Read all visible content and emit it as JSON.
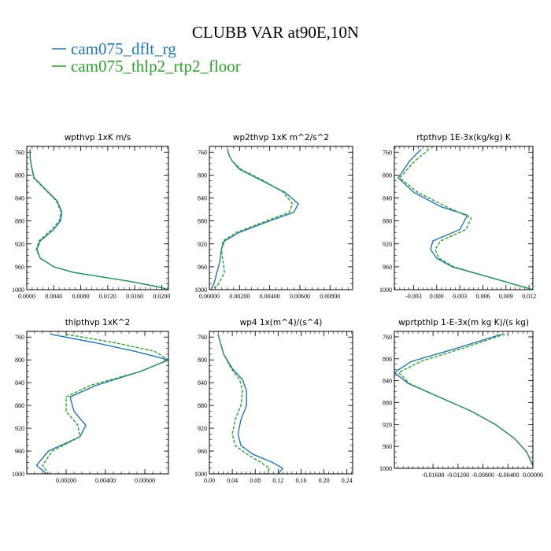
{
  "figure": {
    "title": "CLUBB VAR at90E,10N"
  },
  "legend": [
    {
      "label": "cam075_dflt_rg",
      "color": "#1f77b4",
      "style": "solid"
    },
    {
      "label": "cam075_thlp2_rtp2_floor",
      "color": "#2ca02c",
      "style": "dashed"
    }
  ],
  "chart_data": [
    {
      "type": "line",
      "title": "wpthvp   1xK m/s",
      "xlim": [
        0,
        0.021
      ],
      "ylim": [
        1000,
        750
      ],
      "xticks": [
        0,
        0.004,
        0.008,
        0.012,
        0.016,
        0.02
      ],
      "xtick_labels": [
        "0.0000",
        "0.0040",
        "0.0080",
        "0.0120",
        "0.0160",
        "0.0200"
      ],
      "yticks": [
        760,
        800,
        840,
        880,
        920,
        960,
        1000
      ],
      "ytick_labels": [
        "760",
        "800",
        "840",
        "880",
        "920",
        "960",
        "1000"
      ],
      "series": [
        {
          "name": "cam075_dflt_rg",
          "x": [
            0.0005,
            0.0005,
            0.0007,
            0.0011,
            0.0045,
            0.0052,
            0.005,
            0.004,
            0.002,
            0.0015,
            0.002,
            0.004,
            0.007,
            0.015,
            0.0195,
            0.021
          ],
          "y": [
            755,
            770,
            785,
            805,
            845,
            865,
            880,
            895,
            915,
            930,
            945,
            960,
            970,
            985,
            995,
            1000
          ]
        },
        {
          "name": "cam075_thlp2_rtp2_floor",
          "x": [
            0.0005,
            0.0005,
            0.0007,
            0.001,
            0.0044,
            0.0051,
            0.0048,
            0.0037,
            0.0018,
            0.0014,
            0.002,
            0.004,
            0.007,
            0.015,
            0.0195,
            0.021
          ],
          "y": [
            755,
            770,
            785,
            805,
            845,
            865,
            880,
            895,
            915,
            930,
            945,
            960,
            970,
            985,
            995,
            1000
          ]
        }
      ]
    },
    {
      "type": "line",
      "title": "wp2thvp   1xK m^2/s^2",
      "xlim": [
        0,
        0.0095
      ],
      "ylim": [
        1000,
        750
      ],
      "xticks": [
        0,
        0.002,
        0.004,
        0.006,
        0.008
      ],
      "xtick_labels": [
        "0.00000",
        "0.00200",
        "0.00400",
        "0.00600",
        "0.00800"
      ],
      "yticks": [
        760,
        800,
        840,
        880,
        920,
        960,
        1000
      ],
      "ytick_labels": [
        "760",
        "800",
        "840",
        "880",
        "920",
        "960",
        "1000"
      ],
      "series": [
        {
          "name": "cam075_dflt_rg",
          "x": [
            0.0012,
            0.0013,
            0.0015,
            0.002,
            0.0035,
            0.005,
            0.0059,
            0.0056,
            0.004,
            0.002,
            0.001,
            0.0008,
            0.0007,
            0.0005,
            0.0003,
            0.0001
          ],
          "y": [
            755,
            765,
            775,
            790,
            810,
            830,
            850,
            865,
            880,
            900,
            915,
            930,
            950,
            970,
            990,
            1000
          ]
        },
        {
          "name": "cam075_thlp2_rtp2_floor",
          "x": [
            0.0012,
            0.0013,
            0.0015,
            0.0021,
            0.0036,
            0.0049,
            0.0055,
            0.0053,
            0.0038,
            0.0018,
            0.0009,
            0.0008,
            0.0009,
            0.001,
            0.0006,
            0.0002
          ],
          "y": [
            755,
            765,
            775,
            790,
            810,
            830,
            850,
            865,
            880,
            900,
            915,
            930,
            950,
            970,
            990,
            1000
          ]
        }
      ]
    },
    {
      "type": "line",
      "title": "rtpthvp   1E-3x(kg/kg) K",
      "xlim": [
        -0.0055,
        0.0125
      ],
      "ylim": [
        1000,
        750
      ],
      "xticks": [
        -0.003,
        0.0,
        0.003,
        0.006,
        0.009,
        0.012
      ],
      "xtick_labels": [
        "-0.003",
        "0.000",
        "0.003",
        "0.006",
        "0.009",
        "0.012"
      ],
      "yticks": [
        760,
        800,
        840,
        880,
        920,
        960,
        1000
      ],
      "ytick_labels": [
        "760",
        "800",
        "840",
        "880",
        "920",
        "960",
        "1000"
      ],
      "series": [
        {
          "name": "cam075_dflt_rg",
          "x": [
            -0.002,
            -0.0035,
            -0.005,
            -0.003,
            0.0005,
            0.004,
            0.003,
            -0.0005,
            -0.0008,
            0.0,
            0.002,
            0.006,
            0.0125
          ],
          "y": [
            755,
            775,
            805,
            830,
            855,
            870,
            895,
            915,
            930,
            945,
            960,
            975,
            1000
          ]
        },
        {
          "name": "cam075_thlp2_rtp2_floor",
          "x": [
            -0.001,
            -0.0028,
            -0.0048,
            -0.0025,
            0.0012,
            0.0045,
            0.0038,
            0.0005,
            -0.0002,
            0.0003,
            0.0022,
            0.006,
            0.0125
          ],
          "y": [
            755,
            775,
            805,
            830,
            855,
            875,
            895,
            915,
            930,
            945,
            960,
            975,
            1000
          ]
        }
      ]
    },
    {
      "type": "line",
      "title": "thlpthvp   1xK^2",
      "xlim": [
        0,
        0.0072
      ],
      "ylim": [
        1000,
        750
      ],
      "xticks": [
        0.002,
        0.004,
        0.006
      ],
      "xtick_labels": [
        "0.00200",
        "0.00400",
        "0.00600"
      ],
      "yticks": [
        760,
        800,
        840,
        880,
        920,
        960,
        1000
      ],
      "ytick_labels": [
        "760",
        "800",
        "840",
        "880",
        "920",
        "960",
        "1000"
      ],
      "series": [
        {
          "name": "cam075_dflt_rg",
          "x": [
            0.0012,
            0.0035,
            0.0055,
            0.0072,
            0.0058,
            0.0035,
            0.0022,
            0.0024,
            0.003,
            0.0027,
            0.0011,
            0.0005,
            0.001
          ],
          "y": [
            755,
            770,
            785,
            800,
            820,
            845,
            865,
            890,
            915,
            935,
            960,
            985,
            1000
          ]
        },
        {
          "name": "cam075_thlp2_rtp2_floor",
          "x": [
            0.002,
            0.0045,
            0.0065,
            0.0072,
            0.0058,
            0.0032,
            0.002,
            0.002,
            0.0026,
            0.0027,
            0.0013,
            0.0008,
            0.0011
          ],
          "y": [
            755,
            770,
            785,
            800,
            820,
            845,
            865,
            890,
            915,
            935,
            960,
            985,
            1000
          ]
        }
      ]
    },
    {
      "type": "line",
      "title": "wp4   1x(m^4)/(s^4)",
      "xlim": [
        0,
        0.25
      ],
      "ylim": [
        1000,
        750
      ],
      "xticks": [
        0,
        0.04,
        0.08,
        0.12,
        0.16,
        0.2,
        0.24
      ],
      "xtick_labels": [
        "0.00",
        "0.04",
        "0.08",
        "0.12",
        "0.16",
        "0.20",
        "0.24"
      ],
      "yticks": [
        760,
        800,
        840,
        880,
        920,
        960,
        1000
      ],
      "ytick_labels": [
        "760",
        "800",
        "840",
        "880",
        "920",
        "960",
        "1000"
      ],
      "series": [
        {
          "name": "cam075_dflt_rg",
          "x": [
            0.015,
            0.025,
            0.04,
            0.058,
            0.065,
            0.065,
            0.055,
            0.05,
            0.055,
            0.075,
            0.11,
            0.128,
            0.12
          ],
          "y": [
            755,
            790,
            815,
            835,
            855,
            880,
            905,
            930,
            950,
            965,
            980,
            990,
            1000
          ]
        },
        {
          "name": "cam075_thlp2_rtp2_floor",
          "x": [
            0.015,
            0.025,
            0.038,
            0.053,
            0.058,
            0.055,
            0.045,
            0.04,
            0.045,
            0.065,
            0.09,
            0.105,
            0.1
          ],
          "y": [
            755,
            790,
            815,
            835,
            855,
            880,
            905,
            930,
            950,
            965,
            980,
            990,
            1000
          ]
        }
      ]
    },
    {
      "type": "line",
      "title": "wprtpthlp   1-E-3x(m kg K)/(s kg)",
      "xlim": [
        -0.0222,
        0.0
      ],
      "ylim": [
        1000,
        750
      ],
      "xticks": [
        -0.016,
        -0.012,
        -0.008,
        -0.004,
        0.0
      ],
      "xtick_labels": [
        "-0.01600",
        "-0.01200",
        "-0.00800",
        "-0.00400",
        "0.00000"
      ],
      "yticks": [
        760,
        800,
        840,
        880,
        920,
        960,
        1000
      ],
      "ytick_labels": [
        "760",
        "800",
        "840",
        "880",
        "920",
        "960",
        "1000"
      ],
      "series": [
        {
          "name": "cam075_dflt_rg",
          "x": [
            -0.005,
            -0.012,
            -0.0195,
            -0.0222,
            -0.02,
            -0.015,
            -0.01,
            -0.006,
            -0.003,
            -0.001,
            0.0
          ],
          "y": [
            755,
            780,
            805,
            825,
            845,
            870,
            895,
            920,
            945,
            970,
            995
          ]
        },
        {
          "name": "cam075_thlp2_rtp2_floor",
          "x": [
            -0.0045,
            -0.011,
            -0.018,
            -0.0215,
            -0.0198,
            -0.015,
            -0.01,
            -0.006,
            -0.003,
            -0.001,
            0.0
          ],
          "y": [
            755,
            780,
            805,
            825,
            845,
            870,
            895,
            920,
            945,
            970,
            995
          ]
        }
      ]
    }
  ]
}
